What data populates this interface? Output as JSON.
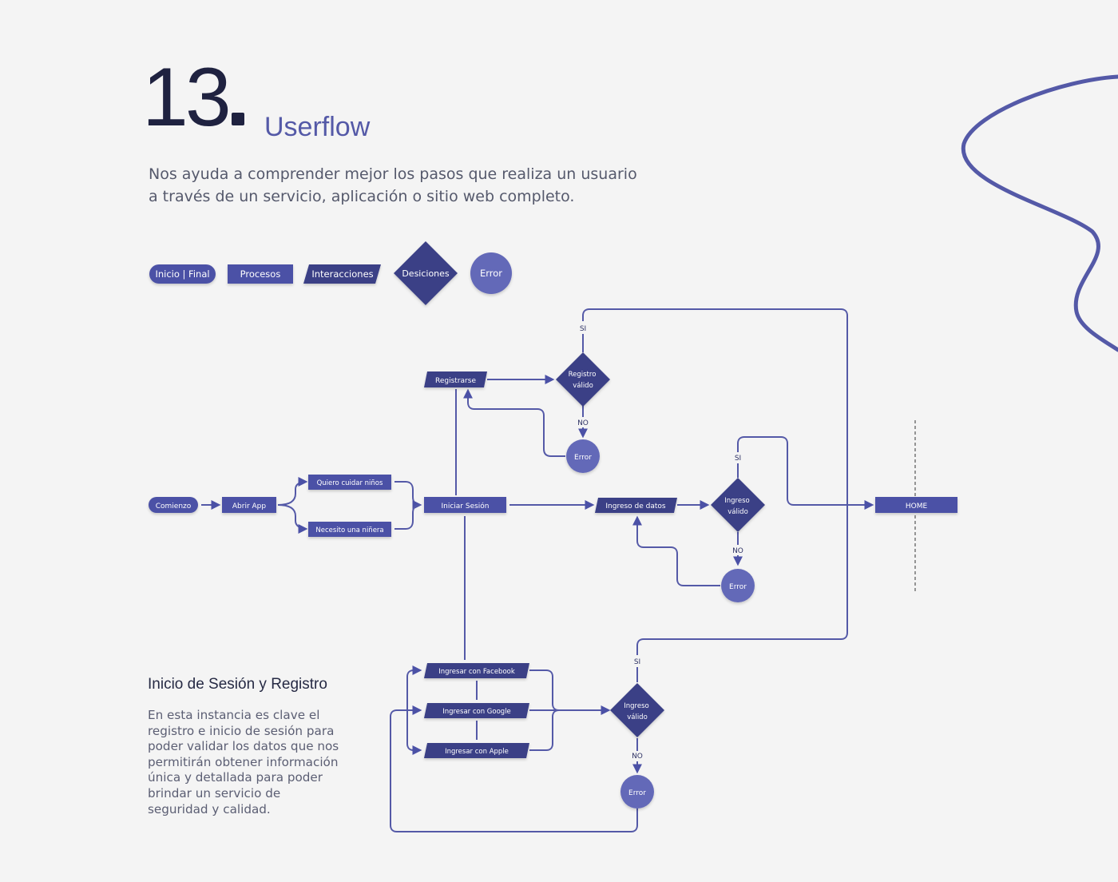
{
  "header": {
    "number": "13",
    "title": "Userflow",
    "intro_line1": "Nos ayuda a comprender mejor los pasos que realiza un usuario",
    "intro_line2": "a través de un servicio, aplicación o sitio web completo."
  },
  "legend": {
    "start_end": "Inicio | Final",
    "process": "Procesos",
    "interaction": "Interacciones",
    "decision": "Desiciones",
    "error": "Error"
  },
  "flow": {
    "start": "Comienzo",
    "open_app": "Abrir App",
    "option_care": "Quiero cuidar niños",
    "option_need": "Necesito una niñera",
    "login": "Iniciar Sesión",
    "register": "Registrarse",
    "register_valid_line1": "Registro",
    "register_valid_line2": "válido",
    "data_entry": "Ingreso de datos",
    "entry_valid_line1": "Ingreso",
    "entry_valid_line2": "válido",
    "facebook": "Ingresar con Facebook",
    "google": "Ingresar con Google",
    "apple": "Ingresar con Apple",
    "error": "Error",
    "yes": "SI",
    "no": "NO",
    "home": "HOME"
  },
  "section": {
    "heading": "Inicio de Sesión y Registro",
    "body": "En esta instancia es clave el registro e inicio de sesión para poder validar los datos que nos permitirán obtener información única y detallada para poder brindar un servicio de seguridad y calidad."
  },
  "colors": {
    "process": "#4b51a6",
    "decision": "#3a3f86",
    "error": "#6469b8",
    "line": "#5459a7",
    "title": "#1f2240",
    "accent": "#5459a7"
  }
}
